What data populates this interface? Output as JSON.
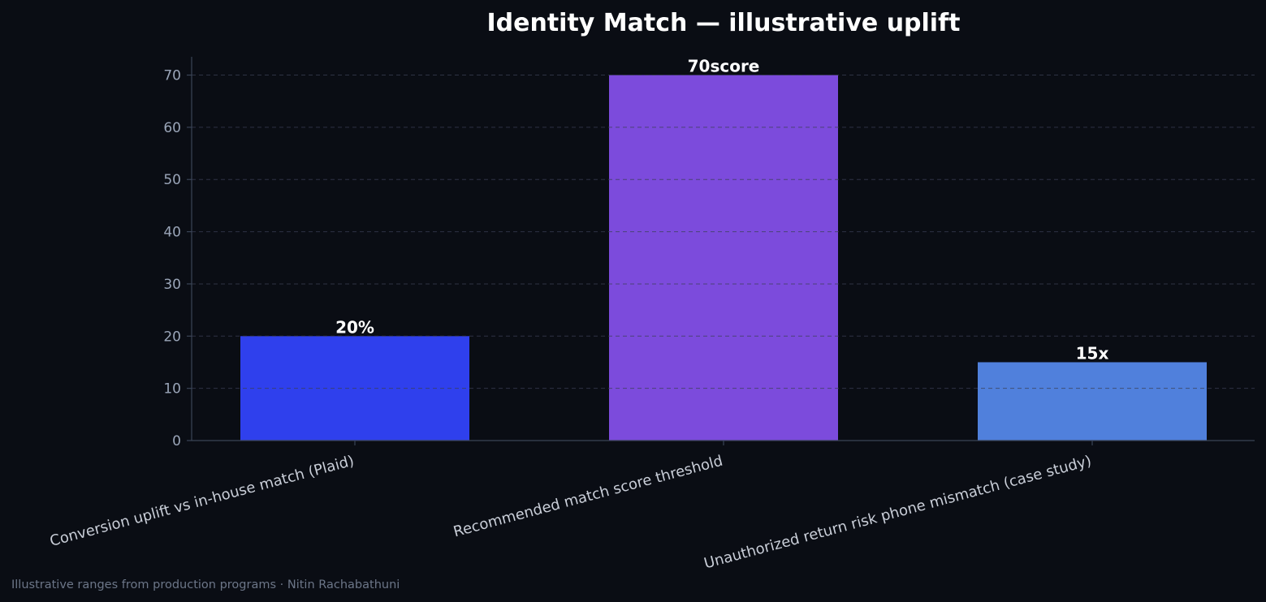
{
  "chart_data": {
    "type": "bar",
    "title": "Identity Match — illustrative uplift",
    "categories": [
      "Conversion uplift vs in-house match (Plaid)",
      "Recommended match score threshold",
      "Unauthorized return risk phone mismatch (case study)"
    ],
    "values": [
      20,
      70,
      15
    ],
    "value_labels": [
      "20%",
      "70score",
      "15x"
    ],
    "colors": [
      "#2f40ed",
      "#7c4bdc",
      "#5080dc"
    ],
    "ylim": [
      0,
      73.5
    ],
    "yticks": [
      0,
      10,
      20,
      30,
      40,
      50,
      60,
      70
    ],
    "grid": true,
    "legend": "none",
    "footer": "Illustrative ranges from production programs · Nitin Rachabathuni"
  },
  "theme": {
    "background": "#0a0d14",
    "axis": "#3a4456",
    "grid": "#3a3f55"
  }
}
